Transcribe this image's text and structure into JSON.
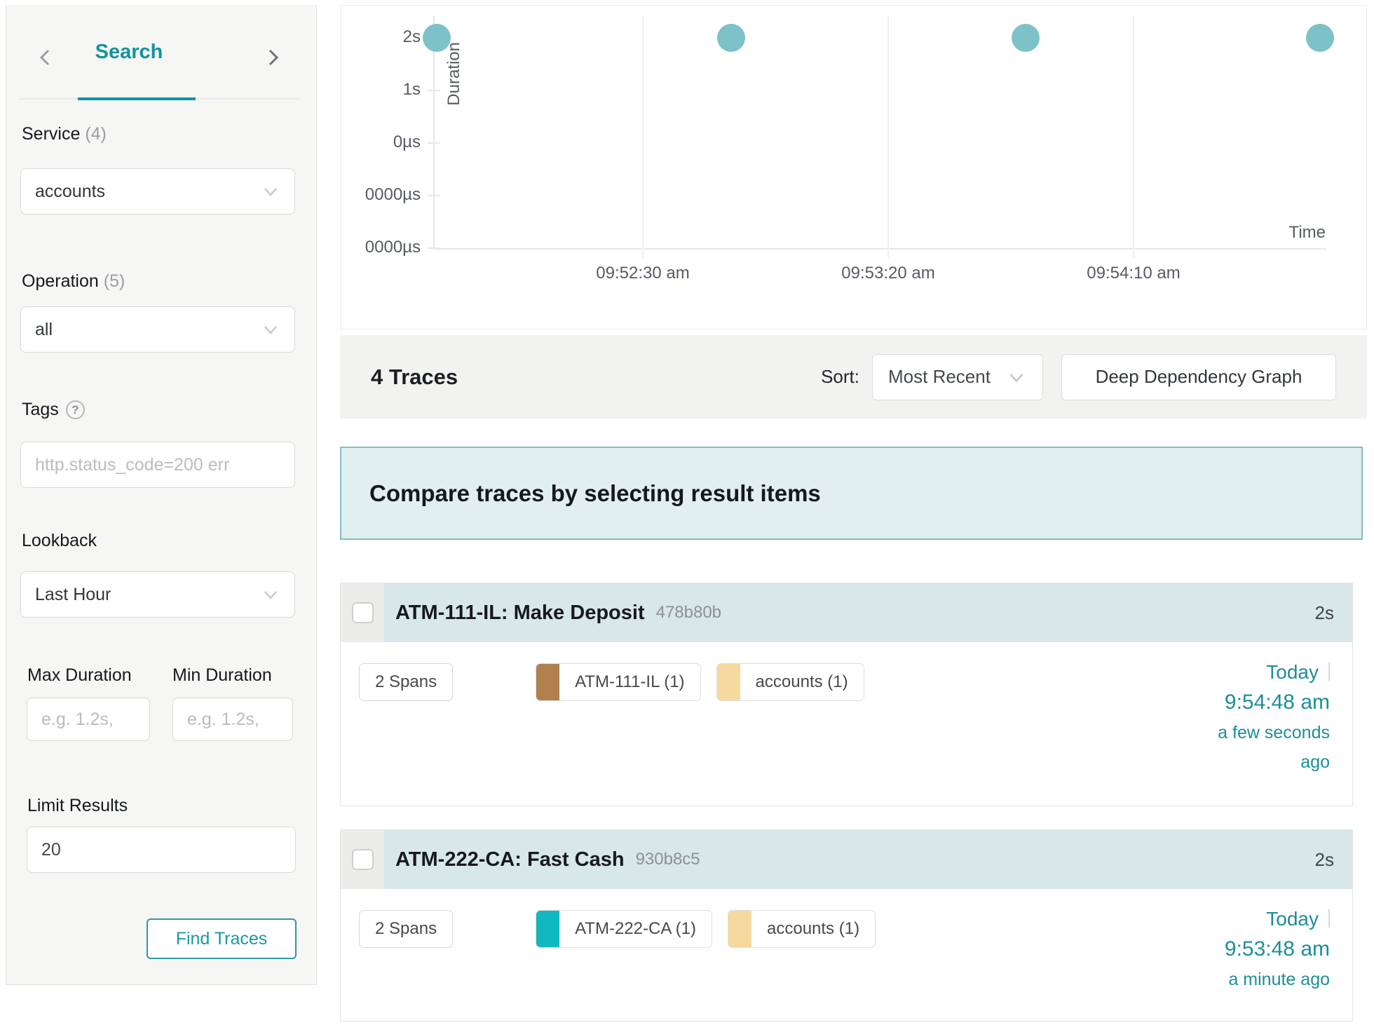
{
  "sidebar": {
    "nav": {
      "title": "Search"
    },
    "service": {
      "label": "Service",
      "count": "(4)",
      "value": "accounts"
    },
    "operation": {
      "label": "Operation",
      "count": "(5)",
      "value": "all"
    },
    "tags": {
      "label": "Tags",
      "help": "?",
      "placeholder": "http.status_code=200 err"
    },
    "lookback": {
      "label": "Lookback",
      "value": "Last Hour"
    },
    "max_duration": {
      "label": "Max Duration",
      "placeholder": "e.g. 1.2s,"
    },
    "min_duration": {
      "label": "Min Duration",
      "placeholder": "e.g. 1.2s,"
    },
    "limit": {
      "label": "Limit Results",
      "value": "20"
    },
    "find_button": "Find Traces"
  },
  "chart_data": {
    "type": "scatter",
    "title": "",
    "xlabel": "Time",
    "ylabel": "Duration",
    "y_tick_labels": [
      "2s",
      "1s",
      "0µs",
      "0000µs",
      "0000µs"
    ],
    "x_tick_labels": [
      "09:52:30 am",
      "09:53:20 am",
      "09:54:10 am"
    ],
    "points": [
      {
        "time": "09:51:48 am",
        "duration_s": 2,
        "duration_label": "2s"
      },
      {
        "time": "09:52:48 am",
        "duration_s": 2,
        "duration_label": "2s"
      },
      {
        "time": "09:53:48 am",
        "duration_s": 2,
        "duration_label": "2s"
      },
      {
        "time": "09:54:48 am",
        "duration_s": 2,
        "duration_label": "2s"
      }
    ],
    "point_color": "#7ec2c9",
    "grid": "light",
    "legend": "none"
  },
  "results_bar": {
    "count_label": "4 Traces",
    "sort_label": "Sort:",
    "sort_value": "Most Recent",
    "ddg_button": "Deep Dependency Graph"
  },
  "banner": {
    "text": "Compare traces by selecting result items"
  },
  "traces": [
    {
      "title": "ATM-111-IL: Make Deposit",
      "trace_id": "478b80b",
      "duration": "2s",
      "spans": "2 Spans",
      "services": [
        {
          "name": "ATM-111-IL (1)",
          "color": "#b1804f"
        },
        {
          "name": "accounts (1)",
          "color": "#f6d99e"
        }
      ],
      "date": "Today",
      "time": "9:54:48 am",
      "relative": [
        "a few seconds",
        "ago"
      ]
    },
    {
      "title": "ATM-222-CA: Fast Cash",
      "trace_id": "930b8c5",
      "duration": "2s",
      "spans": "2 Spans",
      "services": [
        {
          "name": "ATM-222-CA (1)",
          "color": "#12b8c0"
        },
        {
          "name": "accounts (1)",
          "color": "#f6d99e"
        }
      ],
      "date": "Today",
      "time": "9:53:48 am",
      "relative": [
        "a minute ago"
      ]
    }
  ],
  "colors": {
    "accent_teal": "#11939e",
    "link_teal": "#1d8e99",
    "scatter_dot": "#7ec2c9",
    "banner_bg": "#e2efef",
    "banner_border": "#7fbfbf",
    "trace_header_bg": "#d8e7e9",
    "sidebar_bg": "#f6f6f5"
  }
}
